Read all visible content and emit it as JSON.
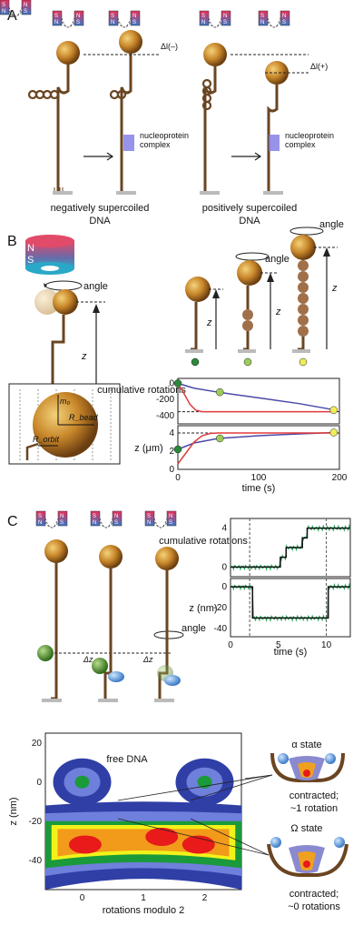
{
  "panels": {
    "a": "A",
    "b": "B",
    "c": "C"
  },
  "magnet": {
    "s": "S",
    "n": "N"
  },
  "panel_a": {
    "delta_l_neg": "Δl(–)",
    "delta_l_pos": "Δl(+)",
    "complex_label_1": "nucleoprotein",
    "complex_label_2": "complex",
    "caption_neg_1": "negatively supercoiled",
    "caption_neg_2": "DNA",
    "caption_pos_1": "positively supercoiled",
    "caption_pos_2": "DNA"
  },
  "panel_b": {
    "angle": "angle",
    "z": "z",
    "inset": {
      "m0": "m₀",
      "r_bead": "R_bead",
      "r_orbit": "R_orbit"
    }
  },
  "panel_c": {
    "angle": "angle",
    "dz1": "Δz",
    "dz2": "Δz",
    "free_dna": "free DNA",
    "alpha_state": "α state",
    "alpha_desc_1": "contracted;",
    "alpha_desc_2": "~1 rotation",
    "omega_state": "Ω state",
    "omega_desc_1": "contracted;",
    "omega_desc_2": "~0 rotations"
  },
  "chart_data": [
    {
      "id": "B-top",
      "type": "line",
      "ylabel": "cumulative rotations",
      "ylim": [
        -500,
        60
      ],
      "yticks": [
        "0",
        "-200",
        "-400"
      ],
      "series": [
        {
          "color": "#4a4aa8",
          "x": [
            0,
            20,
            50,
            100,
            150,
            195
          ],
          "y": [
            0,
            -60,
            -110,
            -180,
            -250,
            -330
          ]
        },
        {
          "color": "#e23b3b",
          "x": [
            0,
            5,
            10,
            15,
            22,
            30,
            40,
            195
          ],
          "y": [
            0,
            -80,
            -170,
            -260,
            -330,
            -350,
            -350,
            -350
          ]
        }
      ],
      "dashed_y": -350
    },
    {
      "id": "B-bottom",
      "type": "line",
      "xlabel": "time (s)",
      "ylabel": "z (μm)",
      "xlim": [
        0,
        200
      ],
      "ylim": [
        0,
        4.8
      ],
      "xticks": [
        "0",
        "100",
        "200"
      ],
      "yticks": [
        "4",
        "2",
        "0"
      ],
      "series": [
        {
          "color": "#4a4aa8",
          "x": [
            0,
            20,
            50,
            100,
            150,
            195
          ],
          "y": [
            2.2,
            2.9,
            3.4,
            3.7,
            3.9,
            4.05
          ]
        },
        {
          "color": "#e23b3b",
          "x": [
            0,
            5,
            10,
            20,
            30,
            40,
            50,
            195
          ],
          "y": [
            0.6,
            1.2,
            1.8,
            3.0,
            3.7,
            3.95,
            4.0,
            4.0
          ]
        }
      ],
      "dashed_y": 4.0,
      "markers": [
        {
          "x": 0,
          "y": 2.2,
          "color": "#2a8a3a"
        },
        {
          "x": 52,
          "y": 3.4,
          "color": "#9ccc5a"
        },
        {
          "x": 193,
          "y": 4.05,
          "color": "#f0ec5a"
        }
      ]
    },
    {
      "id": "C-top",
      "type": "line",
      "ylabel": "cumulative rotations",
      "xlim": [
        0,
        12.5
      ],
      "ylim": [
        -1,
        5
      ],
      "yticks": [
        "4",
        "0"
      ],
      "steps_x": [
        0,
        2.3,
        5.2,
        5.8,
        7.5,
        8.0,
        12.5
      ],
      "steps_y": [
        0,
        0,
        1,
        2,
        3,
        4,
        4
      ],
      "vlines": [
        2,
        10
      ]
    },
    {
      "id": "C-bottom",
      "type": "line",
      "xlabel": "time (s)",
      "ylabel": "z (nm)",
      "xlim": [
        0,
        12.5
      ],
      "ylim": [
        -48,
        8
      ],
      "xticks": [
        "0",
        "5",
        "10"
      ],
      "yticks": [
        "0",
        "-20",
        "-40"
      ],
      "steps_x": [
        0,
        2.3,
        2.3,
        10.2,
        10.2,
        12.5
      ],
      "steps_y": [
        0,
        0,
        -30,
        -30,
        0,
        0
      ],
      "vlines": [
        2,
        10
      ]
    },
    {
      "id": "C-heatmap",
      "type": "heatmap",
      "xlabel": "rotations modulo 2",
      "ylabel": "z (nm)",
      "xlim": [
        -0.6,
        2.6
      ],
      "ylim": [
        -55,
        25
      ],
      "xticks": [
        "0",
        "1",
        "2"
      ],
      "yticks": [
        "20",
        "0",
        "-20",
        "-40"
      ],
      "levels": [
        "#2f3fa6",
        "#6f7fdc",
        "#1a9a3a",
        "#f2f21a",
        "#f29a1a",
        "#e81a1a"
      ]
    }
  ]
}
